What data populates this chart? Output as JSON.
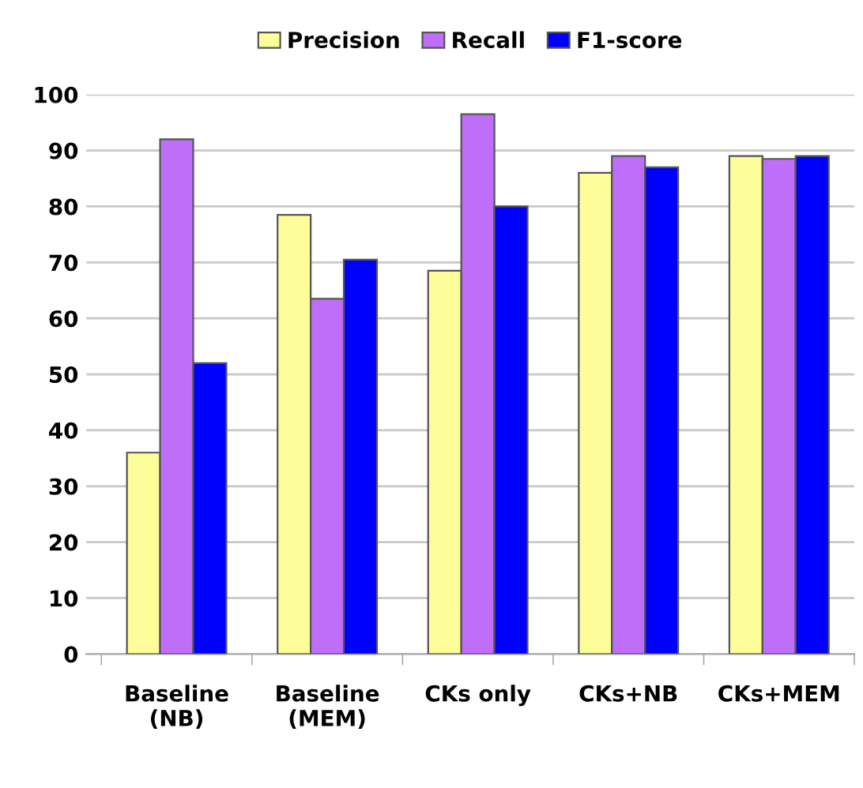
{
  "chart_data": {
    "type": "bar",
    "categories": [
      "Baseline\n(NB)",
      "Baseline\n(MEM)",
      "CKs only",
      "CKs+NB",
      "CKs+MEM"
    ],
    "series": [
      {
        "name": "Precision",
        "color": "#fdfd9a",
        "values": [
          36,
          78.5,
          68.5,
          86,
          89
        ]
      },
      {
        "name": "Recall",
        "color": "#bf6ef9",
        "values": [
          92,
          63.5,
          96.5,
          89,
          88.5
        ]
      },
      {
        "name": "F1-score",
        "color": "#0000fd",
        "values": [
          52,
          70.5,
          80,
          87,
          89
        ]
      }
    ],
    "ylim": [
      0,
      100
    ],
    "yticks": [
      0,
      10,
      20,
      30,
      40,
      50,
      60,
      70,
      80,
      90,
      100
    ],
    "grid": "y",
    "legend": "top"
  }
}
